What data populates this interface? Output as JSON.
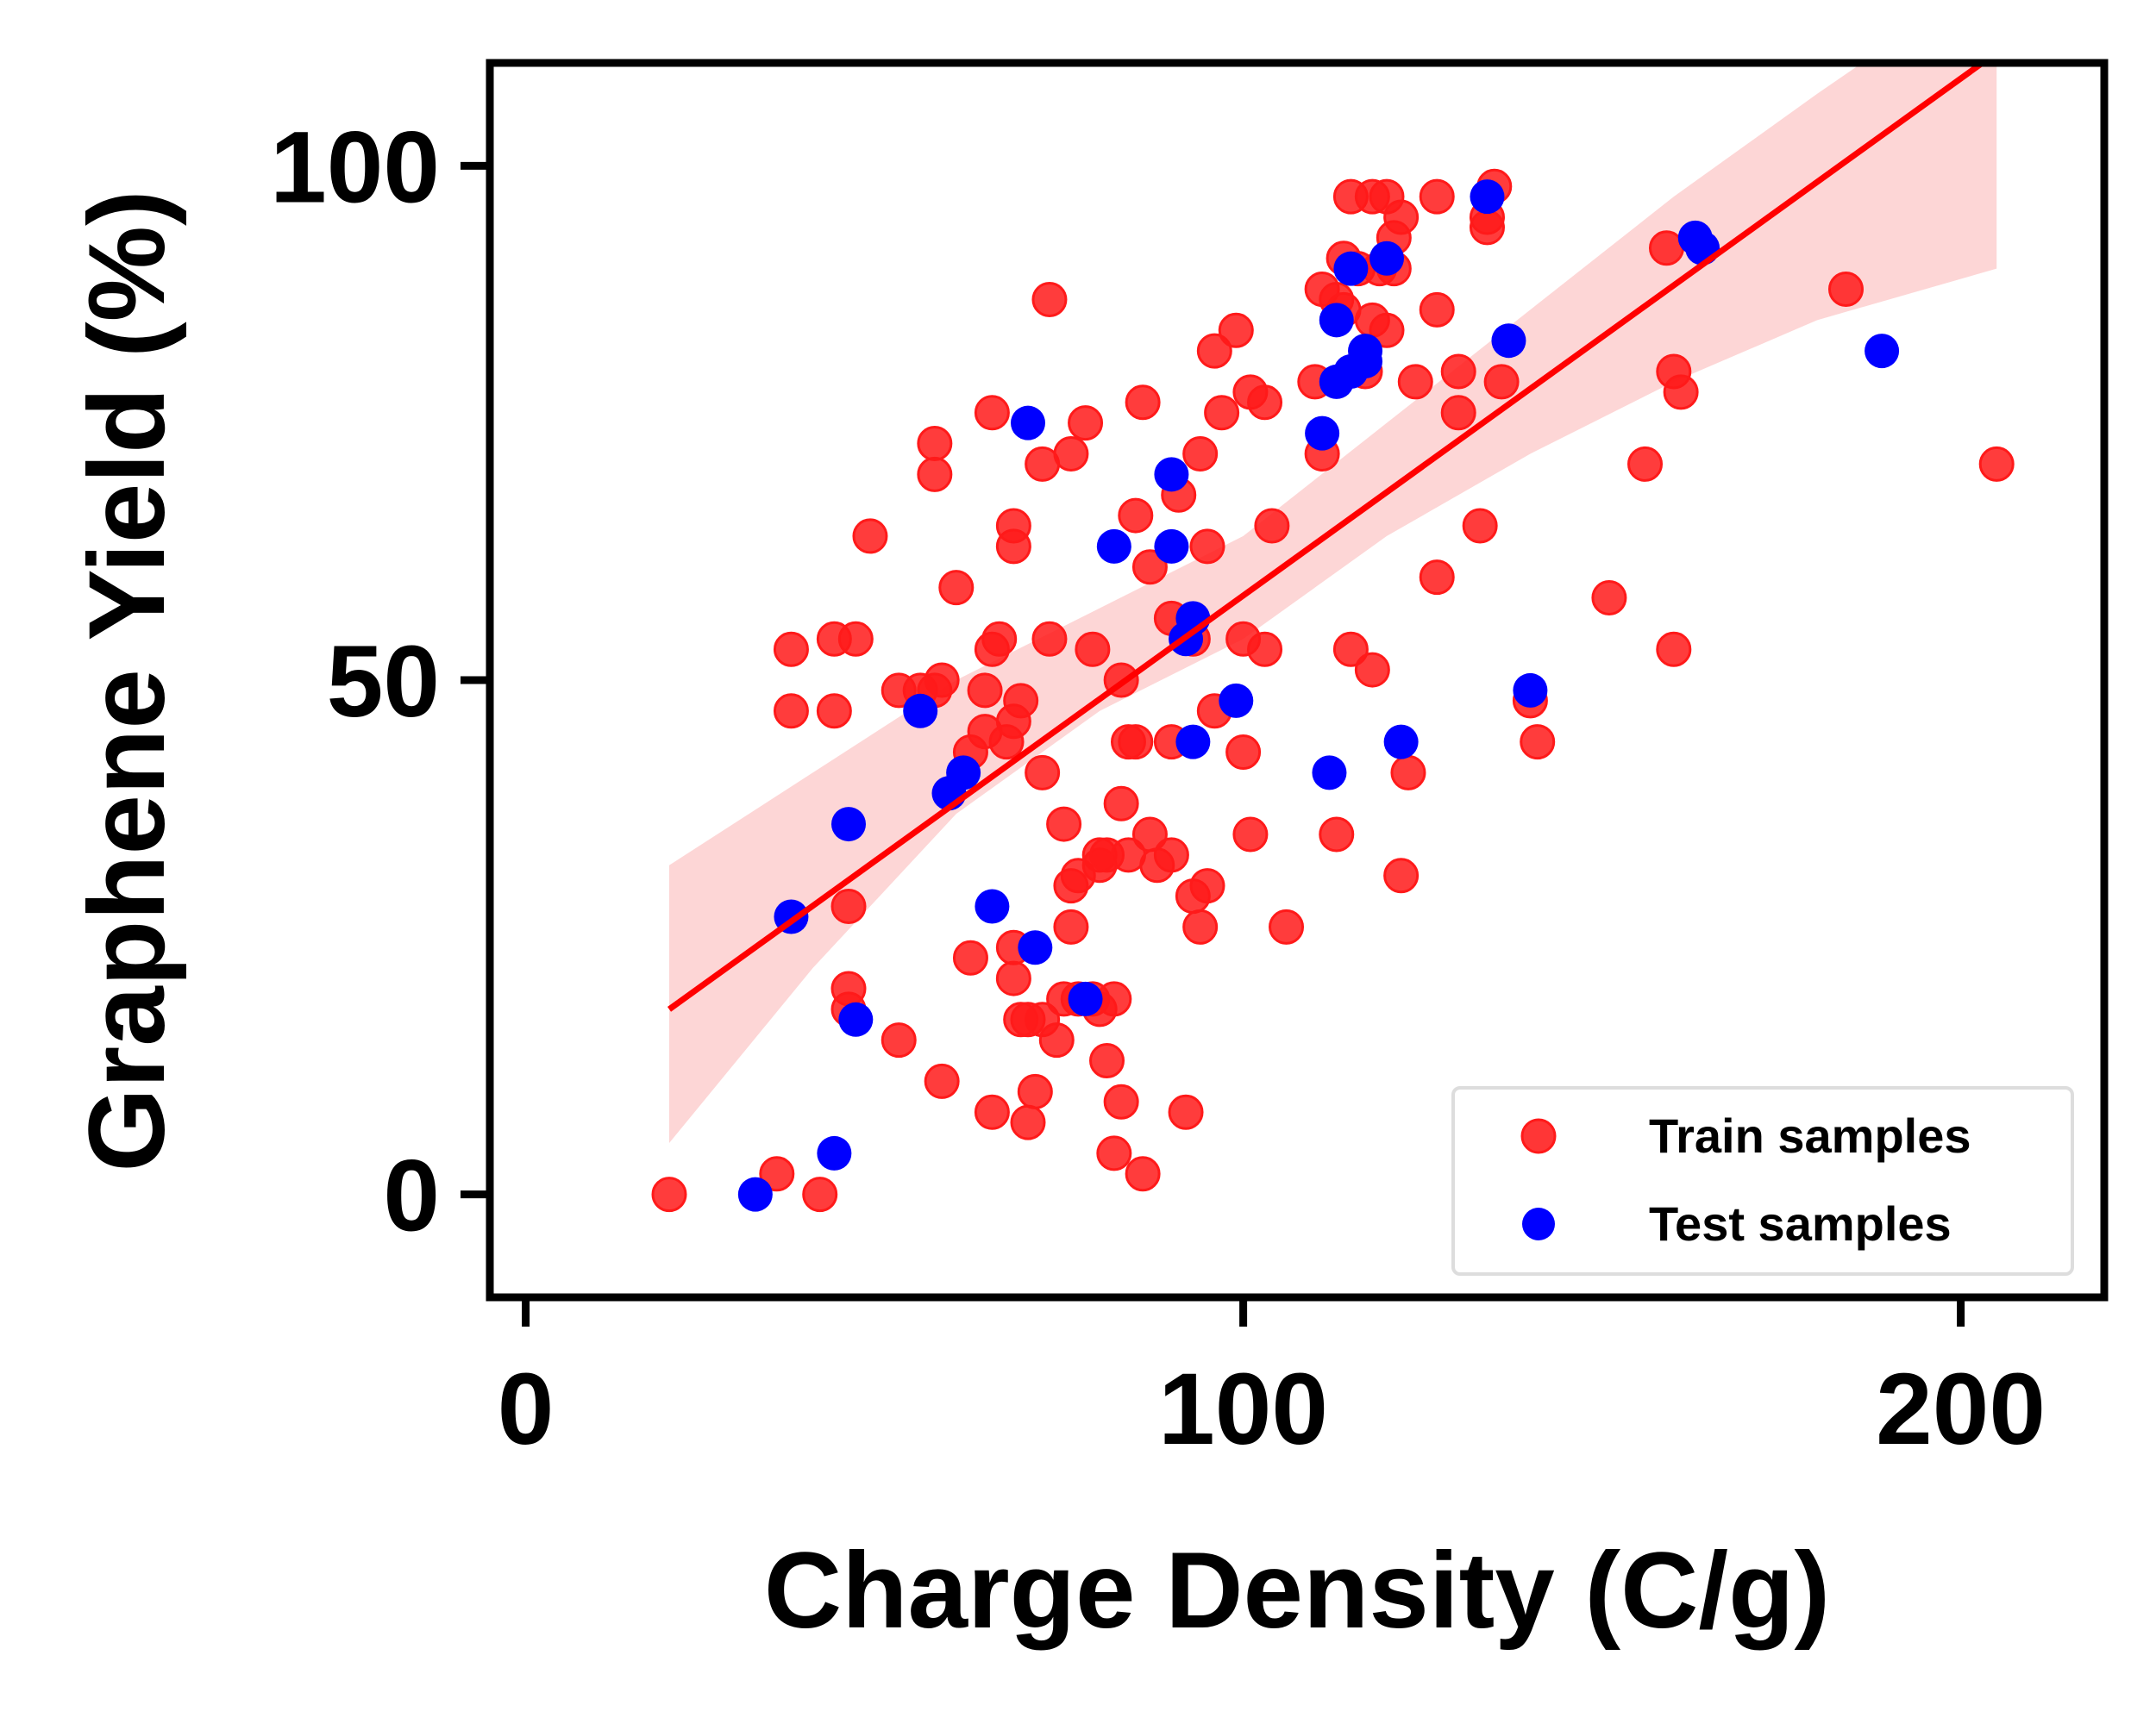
{
  "chart_data": {
    "type": "scatter",
    "xlabel": "Charge Density (C/g)",
    "ylabel": "Graphene Yield (%)",
    "xlim": [
      -5,
      220
    ],
    "ylim": [
      -10,
      110
    ],
    "xticks": [
      "0",
      "100",
      "200"
    ],
    "yticks": [
      "0",
      "50",
      "100"
    ],
    "grid": false,
    "legend_position": "bottom-right",
    "colors": {
      "train": "#ff1a1a",
      "test": "#0000ff",
      "fit": "#ff0000",
      "band": "#fdd6d6"
    },
    "series": [
      {
        "name": "Train samples",
        "points": [
          [
            20,
            0
          ],
          [
            35,
            2
          ],
          [
            41,
            0
          ],
          [
            37,
            53
          ],
          [
            37,
            47
          ],
          [
            43,
            54
          ],
          [
            46,
            54
          ],
          [
            43,
            47
          ],
          [
            45,
            28
          ],
          [
            45,
            20
          ],
          [
            45,
            18
          ],
          [
            48,
            64
          ],
          [
            52,
            15
          ],
          [
            52,
            49
          ],
          [
            55,
            49
          ],
          [
            57,
            49
          ],
          [
            58,
            50
          ],
          [
            58,
            11
          ],
          [
            57,
            70
          ],
          [
            57,
            73
          ],
          [
            60,
            59
          ],
          [
            62,
            43
          ],
          [
            62,
            23
          ],
          [
            64,
            49
          ],
          [
            64,
            45
          ],
          [
            65,
            53
          ],
          [
            65,
            76
          ],
          [
            66,
            54
          ],
          [
            65,
            8
          ],
          [
            67,
            44
          ],
          [
            68,
            63
          ],
          [
            68,
            65
          ],
          [
            68,
            46
          ],
          [
            68,
            24
          ],
          [
            68,
            21
          ],
          [
            69,
            17
          ],
          [
            69,
            48
          ],
          [
            70,
            17
          ],
          [
            70,
            7
          ],
          [
            71,
            10
          ],
          [
            72,
            17
          ],
          [
            72,
            41
          ],
          [
            72,
            71
          ],
          [
            73,
            54
          ],
          [
            73,
            87
          ],
          [
            74,
            15
          ],
          [
            75,
            19
          ],
          [
            75,
            36
          ],
          [
            76,
            30
          ],
          [
            76,
            72
          ],
          [
            76,
            26
          ],
          [
            77,
            31
          ],
          [
            77,
            19
          ],
          [
            78,
            75
          ],
          [
            79,
            53
          ],
          [
            79,
            19
          ],
          [
            80,
            33
          ],
          [
            80,
            32
          ],
          [
            80,
            18
          ],
          [
            81,
            33
          ],
          [
            81,
            13
          ],
          [
            82,
            4
          ],
          [
            82,
            19
          ],
          [
            83,
            38
          ],
          [
            83,
            9
          ],
          [
            83,
            50
          ],
          [
            84,
            44
          ],
          [
            84,
            33
          ],
          [
            85,
            66
          ],
          [
            85,
            44
          ],
          [
            86,
            77
          ],
          [
            86,
            2
          ],
          [
            87,
            61
          ],
          [
            87,
            35
          ],
          [
            88,
            32
          ],
          [
            90,
            56
          ],
          [
            90,
            44
          ],
          [
            90,
            33
          ],
          [
            91,
            68
          ],
          [
            92,
            8
          ],
          [
            93,
            29
          ],
          [
            93,
            54
          ],
          [
            94,
            26
          ],
          [
            94,
            72
          ],
          [
            95,
            63
          ],
          [
            95,
            30
          ],
          [
            96,
            47
          ],
          [
            96,
            82
          ],
          [
            97,
            76
          ],
          [
            99,
            84
          ],
          [
            100,
            54
          ],
          [
            100,
            43
          ],
          [
            101,
            35
          ],
          [
            101,
            78
          ],
          [
            103,
            77
          ],
          [
            103,
            53
          ],
          [
            104,
            65
          ],
          [
            106,
            26
          ],
          [
            110,
            79
          ],
          [
            111,
            88
          ],
          [
            111,
            72
          ],
          [
            113,
            87
          ],
          [
            113,
            35
          ],
          [
            114,
            91
          ],
          [
            114,
            86
          ],
          [
            115,
            97
          ],
          [
            115,
            53
          ],
          [
            116,
            90
          ],
          [
            117,
            80
          ],
          [
            118,
            51
          ],
          [
            118,
            85
          ],
          [
            118,
            97
          ],
          [
            119,
            90
          ],
          [
            120,
            84
          ],
          [
            120,
            97
          ],
          [
            121,
            90
          ],
          [
            121,
            93
          ],
          [
            122,
            31
          ],
          [
            122,
            95
          ],
          [
            123,
            41
          ],
          [
            124,
            79
          ],
          [
            127,
            97
          ],
          [
            127,
            86
          ],
          [
            127,
            60
          ],
          [
            130,
            76
          ],
          [
            130,
            80
          ],
          [
            133,
            65
          ],
          [
            134,
            95
          ],
          [
            134,
            94
          ],
          [
            135,
            98
          ],
          [
            136,
            79
          ],
          [
            140,
            48
          ],
          [
            141,
            44
          ],
          [
            151,
            58
          ],
          [
            156,
            71
          ],
          [
            159,
            92
          ],
          [
            160,
            80
          ],
          [
            160,
            53
          ],
          [
            161,
            78
          ],
          [
            184,
            88
          ],
          [
            205,
            71
          ]
        ]
      },
      {
        "name": "Test samples",
        "points": [
          [
            32,
            0
          ],
          [
            37,
            27
          ],
          [
            43,
            4
          ],
          [
            45,
            36
          ],
          [
            46,
            17
          ],
          [
            55,
            47
          ],
          [
            59,
            39
          ],
          [
            61,
            41
          ],
          [
            65,
            28
          ],
          [
            70,
            75
          ],
          [
            71,
            24
          ],
          [
            78,
            19
          ],
          [
            82,
            63
          ],
          [
            90,
            70
          ],
          [
            90,
            63
          ],
          [
            92,
            54
          ],
          [
            93,
            56
          ],
          [
            93,
            44
          ],
          [
            99,
            48
          ],
          [
            111,
            74
          ],
          [
            112,
            41
          ],
          [
            113,
            79
          ],
          [
            113,
            85
          ],
          [
            115,
            80
          ],
          [
            115,
            90
          ],
          [
            117,
            81
          ],
          [
            117,
            82
          ],
          [
            120,
            91
          ],
          [
            122,
            44
          ],
          [
            134,
            97
          ],
          [
            137,
            83
          ],
          [
            140,
            49
          ],
          [
            163,
            93
          ],
          [
            164,
            92
          ],
          [
            189,
            82
          ]
        ]
      }
    ],
    "regression": {
      "line": [
        [
          20,
          18
        ],
        [
          205,
          111
        ]
      ],
      "ci_lower": [
        [
          20,
          5
        ],
        [
          40,
          22
        ],
        [
          60,
          37
        ],
        [
          80,
          47
        ],
        [
          100,
          54
        ],
        [
          120,
          64
        ],
        [
          140,
          72
        ],
        [
          160,
          79
        ],
        [
          180,
          85
        ],
        [
          205,
          90
        ]
      ],
      "ci_upper": [
        [
          20,
          32
        ],
        [
          40,
          41
        ],
        [
          60,
          50
        ],
        [
          80,
          57
        ],
        [
          100,
          64
        ],
        [
          120,
          75
        ],
        [
          140,
          86
        ],
        [
          160,
          97
        ],
        [
          180,
          107
        ],
        [
          205,
          119
        ]
      ]
    },
    "legend": {
      "train_label": "Train samples",
      "test_label": "Test samples"
    }
  }
}
